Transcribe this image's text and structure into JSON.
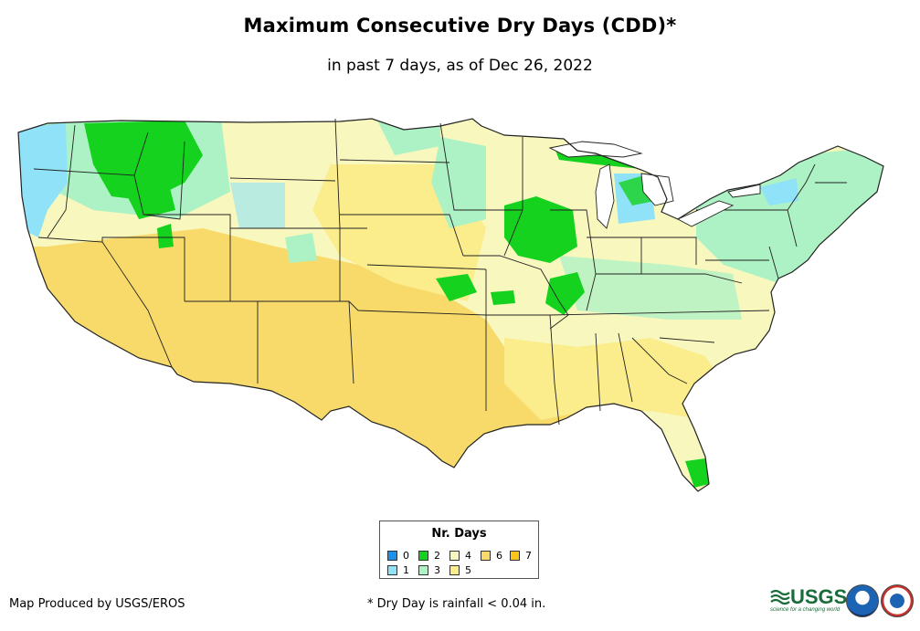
{
  "header": {
    "title": "Maximum Consecutive Dry Days (CDD)*",
    "subtitle": "in past 7 days, as of Dec 26, 2022"
  },
  "legend": {
    "title": "Nr. Days",
    "items": [
      {
        "label": "0",
        "color": "#1e90e8"
      },
      {
        "label": "1",
        "color": "#8fe2f7"
      },
      {
        "label": "2",
        "color": "#14d21e"
      },
      {
        "label": "3",
        "color": "#adf2c4"
      },
      {
        "label": "4",
        "color": "#f8f7be"
      },
      {
        "label": "5",
        "color": "#fbec8c"
      },
      {
        "label": "6",
        "color": "#f7da6a"
      },
      {
        "label": "7",
        "color": "#fbc51b"
      }
    ]
  },
  "footer": {
    "credit": "Map Produced by USGS/EROS",
    "footnote": "* Dry Day is rainfall < 0.04 in."
  },
  "logos": {
    "usgs": "USGS",
    "usgs_tagline": "science for a changing world"
  }
}
